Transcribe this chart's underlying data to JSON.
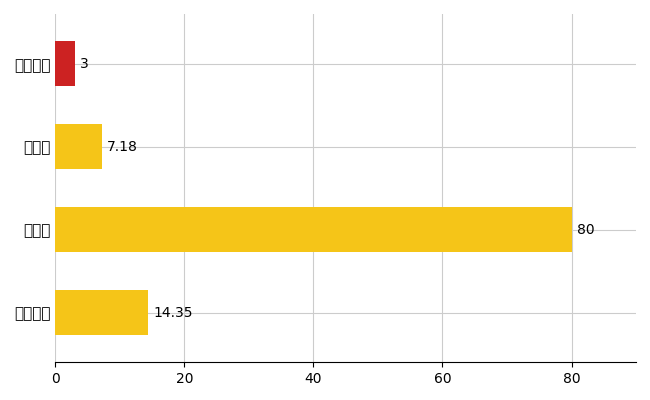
{
  "categories": [
    "南木曽町",
    "県平均",
    "県最大",
    "全国平均"
  ],
  "values": [
    3,
    7.18,
    80,
    14.35
  ],
  "bar_colors": [
    "#CC2222",
    "#F5C518",
    "#F5C518",
    "#F5C518"
  ],
  "value_labels": [
    "3",
    "7.18",
    "80",
    "14.35"
  ],
  "xlim": [
    0,
    90
  ],
  "xticks": [
    0,
    20,
    40,
    60,
    80
  ],
  "grid_color": "#cccccc",
  "background_color": "#ffffff",
  "bar_height": 0.55,
  "label_fontsize": 11,
  "tick_fontsize": 10,
  "value_fontsize": 10
}
